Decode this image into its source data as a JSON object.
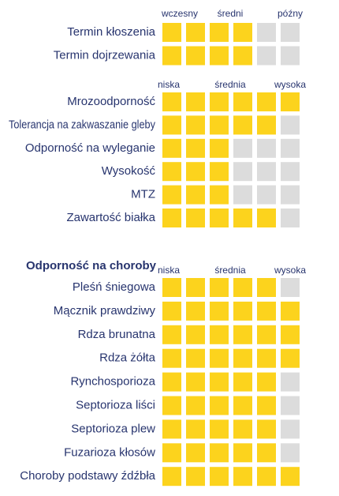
{
  "sections": [
    {
      "scale": [
        "wczesny",
        "średni",
        "późny"
      ],
      "max": 6,
      "rows": [
        {
          "label": "Termin kłoszenia",
          "value": 4
        },
        {
          "label": "Termin dojrzewania",
          "value": 4
        }
      ]
    },
    {
      "scale": [
        "niska",
        "średnia",
        "wysoka"
      ],
      "max": 6,
      "rows": [
        {
          "label": "Mrozoodporność",
          "value": 6
        },
        {
          "label": "Tolerancja na zakwaszanie gleby",
          "value": 5
        },
        {
          "label": "Odporność na wyleganie",
          "value": 3
        },
        {
          "label": "Wysokość",
          "value": 3
        },
        {
          "label": "MTZ",
          "value": 3
        },
        {
          "label": "Zawartość białka",
          "value": 5
        }
      ]
    },
    {
      "title": "Odporność na choroby",
      "scale": [
        "niska",
        "średnia",
        "wysoka"
      ],
      "max": 6,
      "rows": [
        {
          "label": "Pleśń śniegowa",
          "value": 5
        },
        {
          "label": "Mącznik prawdziwy",
          "value": 6
        },
        {
          "label": "Rdza brunatna",
          "value": 6
        },
        {
          "label": "Rdza żółta",
          "value": 6
        },
        {
          "label": "Rynchosporioza",
          "value": 5
        },
        {
          "label": "Septorioza liści",
          "value": 5
        },
        {
          "label": "Septorioza plew",
          "value": 5
        },
        {
          "label": "Fuzarioza kłosów",
          "value": 5
        },
        {
          "label": "Choroby podstawy źdźbła",
          "value": 6
        }
      ]
    }
  ]
}
